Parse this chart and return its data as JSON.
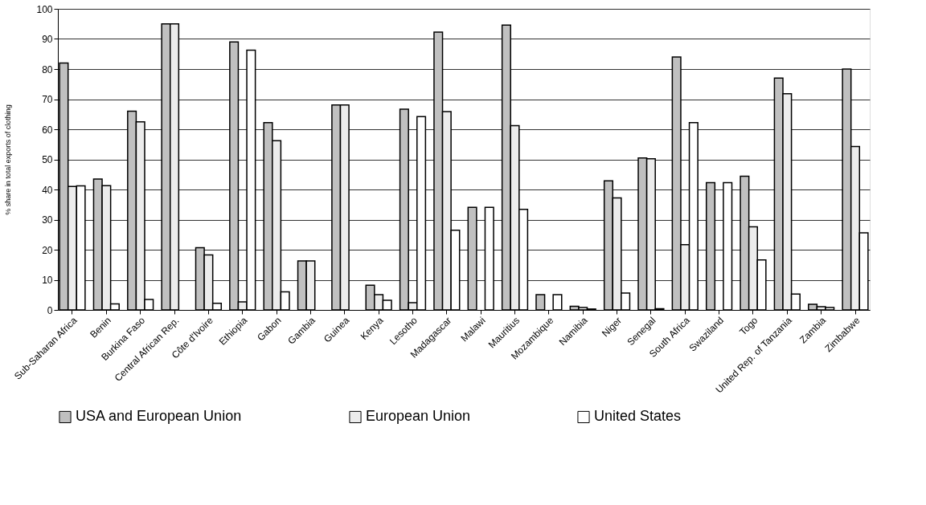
{
  "chart_data": {
    "type": "bar",
    "ylabel": "% share in total exports of clothing",
    "categories": [
      "Sub-Saharan Africa",
      "Benin",
      "Burkina Faso",
      "Central African Rep.",
      "Côte d'Ivoire",
      "Ethiopia",
      "Gabon",
      "Gambia",
      "Guinea",
      "Kenya",
      "Lesotho",
      "Madagascar",
      "Malawi",
      "Mauritius",
      "Mozambique",
      "Namibia",
      "Niger",
      "Senegal",
      "South Africa",
      "Swaziland",
      "Togo",
      "United Rep. of Tanzania",
      "Zambia",
      "Zimbabwe"
    ],
    "series": [
      {
        "name": "USA and European Union",
        "color": "#c0c0c0",
        "values": [
          82,
          43.5,
          66,
          95,
          20.7,
          89,
          62.2,
          16.3,
          68.1,
          8.2,
          66.7,
          92.3,
          34.1,
          94.6,
          5.1,
          1.2,
          42.9,
          50.5,
          84,
          42.3,
          44.4,
          77,
          1.9,
          80
        ]
      },
      {
        "name": "European Union",
        "color": "#ececec",
        "values": [
          41,
          41.3,
          62.5,
          95,
          18.3,
          2.7,
          56.2,
          16.3,
          68.1,
          5.1,
          2.4,
          65.9,
          null,
          61.2,
          null,
          0.8,
          37.2,
          50.2,
          21.7,
          null,
          27.6,
          71.8,
          1.1,
          54.3
        ]
      },
      {
        "name": "United States",
        "color": "#ffffff",
        "values": [
          41.2,
          2,
          3.5,
          null,
          2.2,
          86.3,
          6,
          null,
          null,
          3.2,
          64.2,
          26.5,
          34.1,
          33.4,
          5.1,
          0.3,
          5.6,
          0.4,
          62.2,
          42.3,
          16.6,
          5.3,
          0.8,
          25.6
        ]
      }
    ],
    "ylim": [
      0,
      100
    ],
    "yticks": [
      0,
      10,
      20,
      30,
      40,
      50,
      60,
      70,
      80,
      90,
      100
    ],
    "grid": "y",
    "legend": "bottom"
  }
}
